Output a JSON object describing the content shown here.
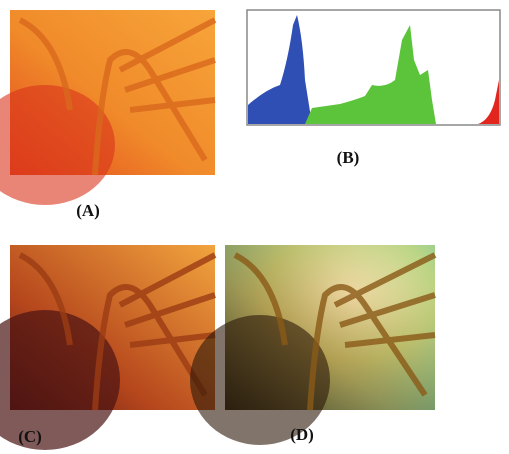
{
  "figure": {
    "panels": [
      {
        "label": "(A)"
      },
      {
        "label": "(B)"
      },
      {
        "label": "(C)"
      },
      {
        "label": "(D)"
      }
    ]
  }
}
